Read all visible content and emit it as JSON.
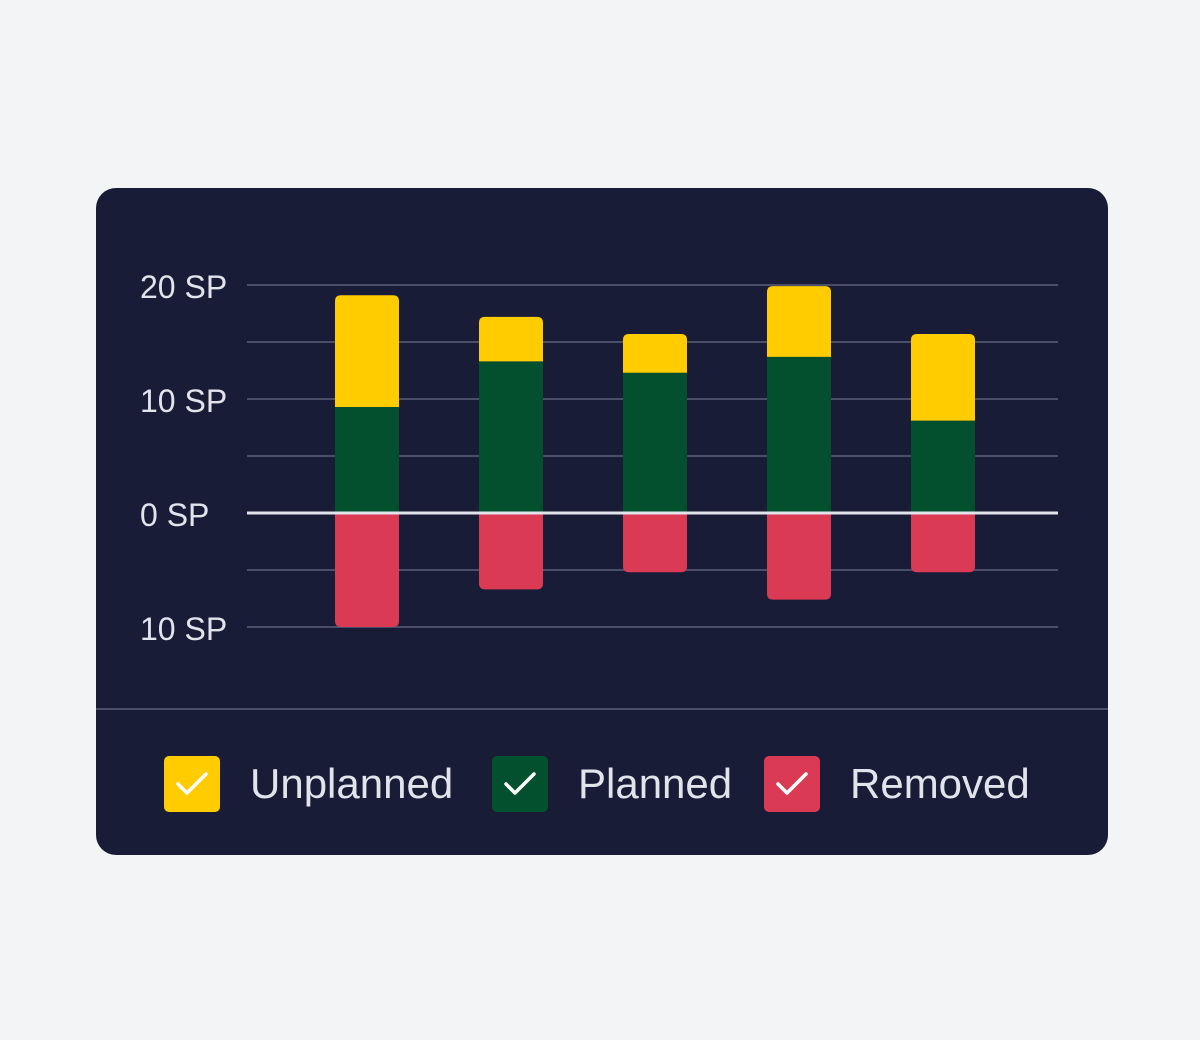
{
  "chart_data": {
    "type": "bar",
    "stacked": true,
    "categories": [
      "",
      "",
      "",
      "",
      ""
    ],
    "series": [
      {
        "name": "Planned",
        "color": "#03502F",
        "values": [
          9.3,
          13.3,
          12.3,
          13.7,
          8.1
        ]
      },
      {
        "name": "Unplanned",
        "color": "#FFCC00",
        "values": [
          9.8,
          3.9,
          3.4,
          6.2,
          7.6
        ]
      },
      {
        "name": "Removed",
        "color": "#DB3A54",
        "values": [
          -10,
          -6.7,
          -5.2,
          -7.6,
          -5.2
        ]
      }
    ],
    "yticks": [
      {
        "value": 20,
        "label": "20 SP"
      },
      {
        "value": 10,
        "label": "10 SP"
      },
      {
        "value": 0,
        "label": "0 SP"
      },
      {
        "value": -10,
        "label": "10 SP"
      }
    ],
    "ylim": [
      -10,
      20
    ],
    "grid": true,
    "legend_position": "bottom"
  },
  "legend": {
    "items": [
      {
        "label": "Unplanned",
        "color": "#FFCC00",
        "checked": true,
        "icon": "check-icon"
      },
      {
        "label": "Planned",
        "color": "#03502F",
        "checked": true,
        "icon": "check-icon"
      },
      {
        "label": "Removed",
        "color": "#DB3A54",
        "checked": true,
        "icon": "check-icon"
      }
    ]
  },
  "colors": {
    "background": "#F3F4F6",
    "card": "#191C36",
    "grid": "#4A4E6B",
    "zero_line": "#E2E4EC",
    "text": "#E2E4EC"
  }
}
